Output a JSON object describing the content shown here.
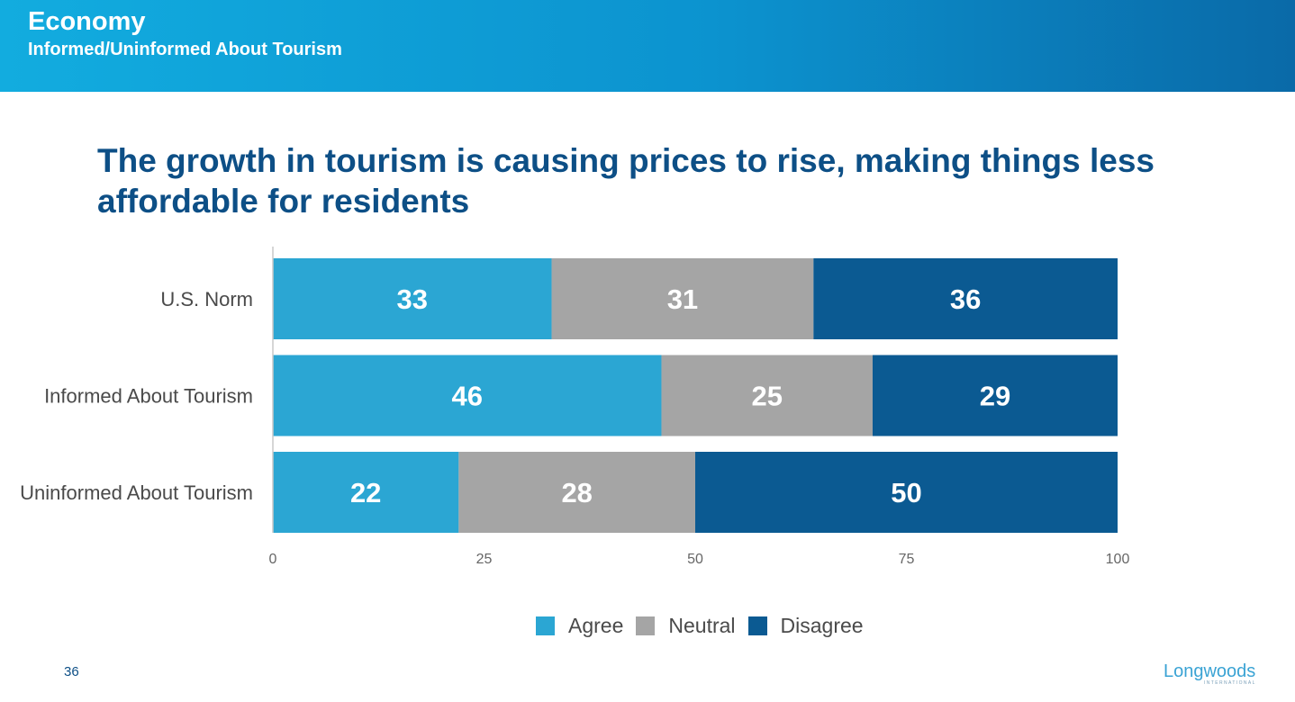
{
  "header": {
    "title": "Economy",
    "subtitle": "Informed/Uninformed About Tourism"
  },
  "slide": {
    "page_number": "36",
    "logo_text": "Longwoods",
    "logo_subtext": "INTERNATIONAL"
  },
  "colors": {
    "agree": "#2ba6d3",
    "neutral": "#a5a5a5",
    "disagree": "#0b5a92",
    "title": "#0d4f86",
    "header_start": "#12acdf",
    "header_end": "#0a6aa8"
  },
  "chart_data": {
    "type": "bar",
    "orientation": "horizontal",
    "stacked": true,
    "title": "The growth in tourism is causing prices to rise, making things less affordable for residents",
    "categories": [
      "U.S. Norm",
      "Informed About Tourism",
      "Uninformed About Tourism"
    ],
    "series": [
      {
        "name": "Agree",
        "values": [
          33,
          46,
          22
        ],
        "color": "#2ba6d3"
      },
      {
        "name": "Neutral",
        "values": [
          31,
          25,
          28
        ],
        "color": "#a5a5a5"
      },
      {
        "name": "Disagree",
        "values": [
          36,
          29,
          50
        ],
        "color": "#0b5a92"
      }
    ],
    "xlim": [
      0,
      100
    ],
    "xticks": [
      0,
      25,
      50,
      75,
      100
    ],
    "xlabel": "",
    "ylabel": "",
    "grid": false,
    "legend": "bottom"
  }
}
